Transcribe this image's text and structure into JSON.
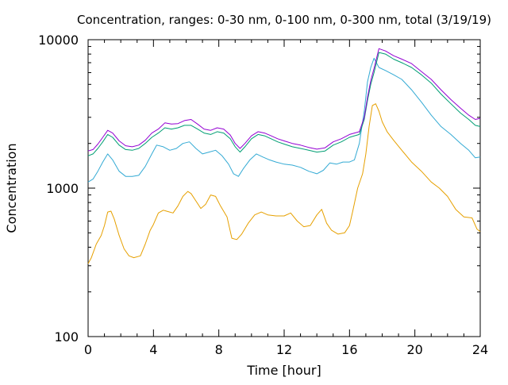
{
  "chart_data": {
    "type": "line",
    "title": "Concentration, ranges: 0-30 nm, 0-100 nm, 0-300 nm, total (3/19/19)",
    "xlabel": "Time [hour]",
    "ylabel": "Concentration",
    "xlim": [
      0,
      24
    ],
    "ylim": [
      100,
      10000
    ],
    "yscale": "log",
    "grid": false,
    "x_ticks": [
      0,
      4,
      8,
      12,
      16,
      20,
      24
    ],
    "x_tick_labels": [
      "0",
      "4",
      "8",
      "12",
      "16",
      "20",
      "24"
    ],
    "y_ticks": [
      100,
      1000,
      10000
    ],
    "y_tick_labels": [
      "100",
      "1000",
      "10000"
    ],
    "series": [
      {
        "color": "#e6a000",
        "x": [
          0,
          0.2,
          0.5,
          0.8,
          1.0,
          1.2,
          1.4,
          1.6,
          1.9,
          2.2,
          2.5,
          2.8,
          3.2,
          3.5,
          3.8,
          4.0,
          4.3,
          4.6,
          4.8,
          5.2,
          5.5,
          5.8,
          6.1,
          6.3,
          6.6,
          6.9,
          7.2,
          7.5,
          7.8,
          8.1,
          8.5,
          8.8,
          9.1,
          9.4,
          9.8,
          10.2,
          10.6,
          11.0,
          11.5,
          12.0,
          12.4,
          12.8,
          13.2,
          13.6,
          14.0,
          14.3,
          14.6,
          14.9,
          15.3,
          15.7,
          16.0,
          16.2,
          16.5,
          16.8,
          17.0,
          17.2,
          17.4,
          17.6,
          17.8,
          18.0,
          18.3,
          18.7,
          19.2,
          19.8,
          20.4,
          21.0,
          21.5,
          22.0,
          22.5,
          23.0,
          23.5,
          23.8,
          24.0
        ],
        "y": [
          310,
          340,
          420,
          480,
          560,
          690,
          700,
          620,
          480,
          390,
          350,
          340,
          350,
          420,
          520,
          570,
          680,
          710,
          700,
          680,
          760,
          880,
          950,
          920,
          820,
          730,
          780,
          900,
          880,
          760,
          640,
          460,
          450,
          490,
          580,
          660,
          690,
          660,
          650,
          650,
          680,
          600,
          550,
          560,
          660,
          720,
          580,
          520,
          490,
          500,
          560,
          700,
          1000,
          1250,
          1700,
          2600,
          3600,
          3700,
          3300,
          2800,
          2400,
          2100,
          1800,
          1500,
          1300,
          1100,
          1000,
          880,
          720,
          640,
          630,
          530,
          510
        ]
      },
      {
        "color": "#33aad4",
        "x": [
          0,
          0.3,
          0.6,
          0.9,
          1.2,
          1.5,
          1.9,
          2.3,
          2.7,
          3.1,
          3.5,
          3.9,
          4.2,
          4.6,
          5.0,
          5.4,
          5.8,
          6.2,
          6.6,
          7.0,
          7.4,
          7.8,
          8.2,
          8.6,
          8.9,
          9.2,
          9.5,
          9.9,
          10.3,
          10.7,
          11.1,
          11.5,
          12.0,
          12.5,
          13.0,
          13.5,
          14.0,
          14.4,
          14.8,
          15.2,
          15.6,
          16.0,
          16.3,
          16.6,
          16.9,
          17.1,
          17.3,
          17.5,
          17.8,
          18.2,
          18.7,
          19.2,
          19.8,
          20.4,
          21.0,
          21.6,
          22.2,
          22.8,
          23.3,
          23.7,
          24.0
        ],
        "y": [
          1100,
          1150,
          1300,
          1500,
          1700,
          1550,
          1300,
          1200,
          1200,
          1220,
          1400,
          1700,
          1950,
          1900,
          1800,
          1850,
          2000,
          2050,
          1850,
          1700,
          1750,
          1800,
          1650,
          1450,
          1250,
          1200,
          1350,
          1550,
          1700,
          1620,
          1550,
          1500,
          1450,
          1430,
          1380,
          1300,
          1250,
          1320,
          1480,
          1450,
          1500,
          1500,
          1550,
          2000,
          3300,
          5200,
          6500,
          7500,
          6500,
          6200,
          5800,
          5400,
          4600,
          3800,
          3100,
          2600,
          2300,
          2000,
          1800,
          1600,
          1620
        ]
      },
      {
        "color": "#009e73",
        "x": [
          0,
          0.3,
          0.6,
          0.9,
          1.2,
          1.5,
          1.9,
          2.3,
          2.7,
          3.1,
          3.5,
          3.9,
          4.3,
          4.7,
          5.1,
          5.5,
          5.9,
          6.3,
          6.7,
          7.1,
          7.5,
          7.9,
          8.3,
          8.7,
          9.0,
          9.3,
          9.6,
          10.0,
          10.4,
          10.8,
          11.2,
          11.6,
          12.0,
          12.5,
          13.0,
          13.5,
          14.0,
          14.5,
          15.0,
          15.5,
          16.0,
          16.3,
          16.6,
          16.9,
          17.1,
          17.3,
          17.5,
          17.8,
          18.2,
          18.7,
          19.2,
          19.8,
          20.4,
          21.0,
          21.6,
          22.2,
          22.8,
          23.3,
          23.7,
          24.0
        ],
        "y": [
          1650,
          1700,
          1850,
          2050,
          2300,
          2200,
          1950,
          1820,
          1800,
          1850,
          2000,
          2200,
          2350,
          2550,
          2500,
          2550,
          2650,
          2650,
          2500,
          2350,
          2300,
          2400,
          2350,
          2150,
          1900,
          1750,
          1900,
          2150,
          2300,
          2250,
          2150,
          2050,
          1980,
          1900,
          1850,
          1800,
          1750,
          1780,
          1950,
          2050,
          2200,
          2250,
          2300,
          2900,
          3900,
          5000,
          6000,
          8200,
          8000,
          7400,
          7000,
          6500,
          5800,
          5100,
          4300,
          3700,
          3200,
          2900,
          2650,
          2600
        ]
      },
      {
        "color": "#9400d3",
        "x": [
          0,
          0.3,
          0.6,
          0.9,
          1.2,
          1.5,
          1.9,
          2.3,
          2.7,
          3.1,
          3.5,
          3.9,
          4.3,
          4.7,
          5.1,
          5.5,
          5.9,
          6.3,
          6.7,
          7.1,
          7.5,
          7.9,
          8.3,
          8.7,
          9.0,
          9.3,
          9.6,
          10.0,
          10.4,
          10.8,
          11.2,
          11.6,
          12.0,
          12.5,
          13.0,
          13.5,
          14.0,
          14.5,
          15.0,
          15.5,
          16.0,
          16.3,
          16.6,
          16.9,
          17.1,
          17.3,
          17.5,
          17.8,
          18.2,
          18.7,
          19.2,
          19.8,
          20.4,
          21.0,
          21.6,
          22.2,
          22.8,
          23.3,
          23.7,
          24.0
        ],
        "y": [
          1780,
          1820,
          1980,
          2200,
          2450,
          2350,
          2080,
          1930,
          1900,
          1950,
          2100,
          2350,
          2500,
          2750,
          2700,
          2720,
          2850,
          2900,
          2700,
          2500,
          2450,
          2550,
          2500,
          2280,
          2000,
          1850,
          2000,
          2250,
          2400,
          2350,
          2250,
          2150,
          2080,
          2000,
          1950,
          1880,
          1830,
          1870,
          2050,
          2150,
          2300,
          2350,
          2400,
          3000,
          4100,
          5300,
          6400,
          8700,
          8400,
          7800,
          7400,
          6900,
          6100,
          5400,
          4600,
          3950,
          3450,
          3100,
          2900,
          2950
        ]
      }
    ]
  }
}
